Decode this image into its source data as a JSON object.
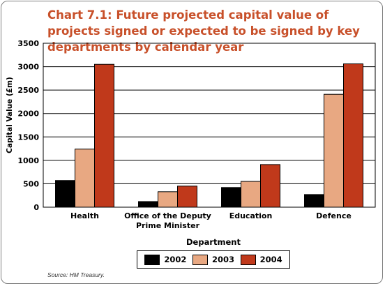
{
  "chart_data": {
    "type": "bar",
    "title": "Chart 7.1: Future projected capital value of projects signed or expected to be signed by key departments by calendar year",
    "xlabel": "Department",
    "ylabel": "Capital Value (£m)",
    "ylim": [
      0,
      3500
    ],
    "yticks": [
      "0",
      "500",
      "1000",
      "1500",
      "2000",
      "2500",
      "3000",
      "3500"
    ],
    "grid": true,
    "legend_position": "bottom",
    "categories": [
      [
        "Health"
      ],
      [
        "Office of the Deputy",
        "Prime Minister"
      ],
      [
        "Education"
      ],
      [
        "Defence"
      ]
    ],
    "series": [
      {
        "name": "2002",
        "color": "#000000",
        "values": [
          570,
          120,
          420,
          270
        ]
      },
      {
        "name": "2003",
        "color": "#e8a882",
        "values": [
          1240,
          330,
          550,
          2410
        ]
      },
      {
        "name": "2004",
        "color": "#c0391b",
        "values": [
          3050,
          450,
          910,
          3060
        ]
      }
    ],
    "source": "Source: HM Treasury."
  }
}
